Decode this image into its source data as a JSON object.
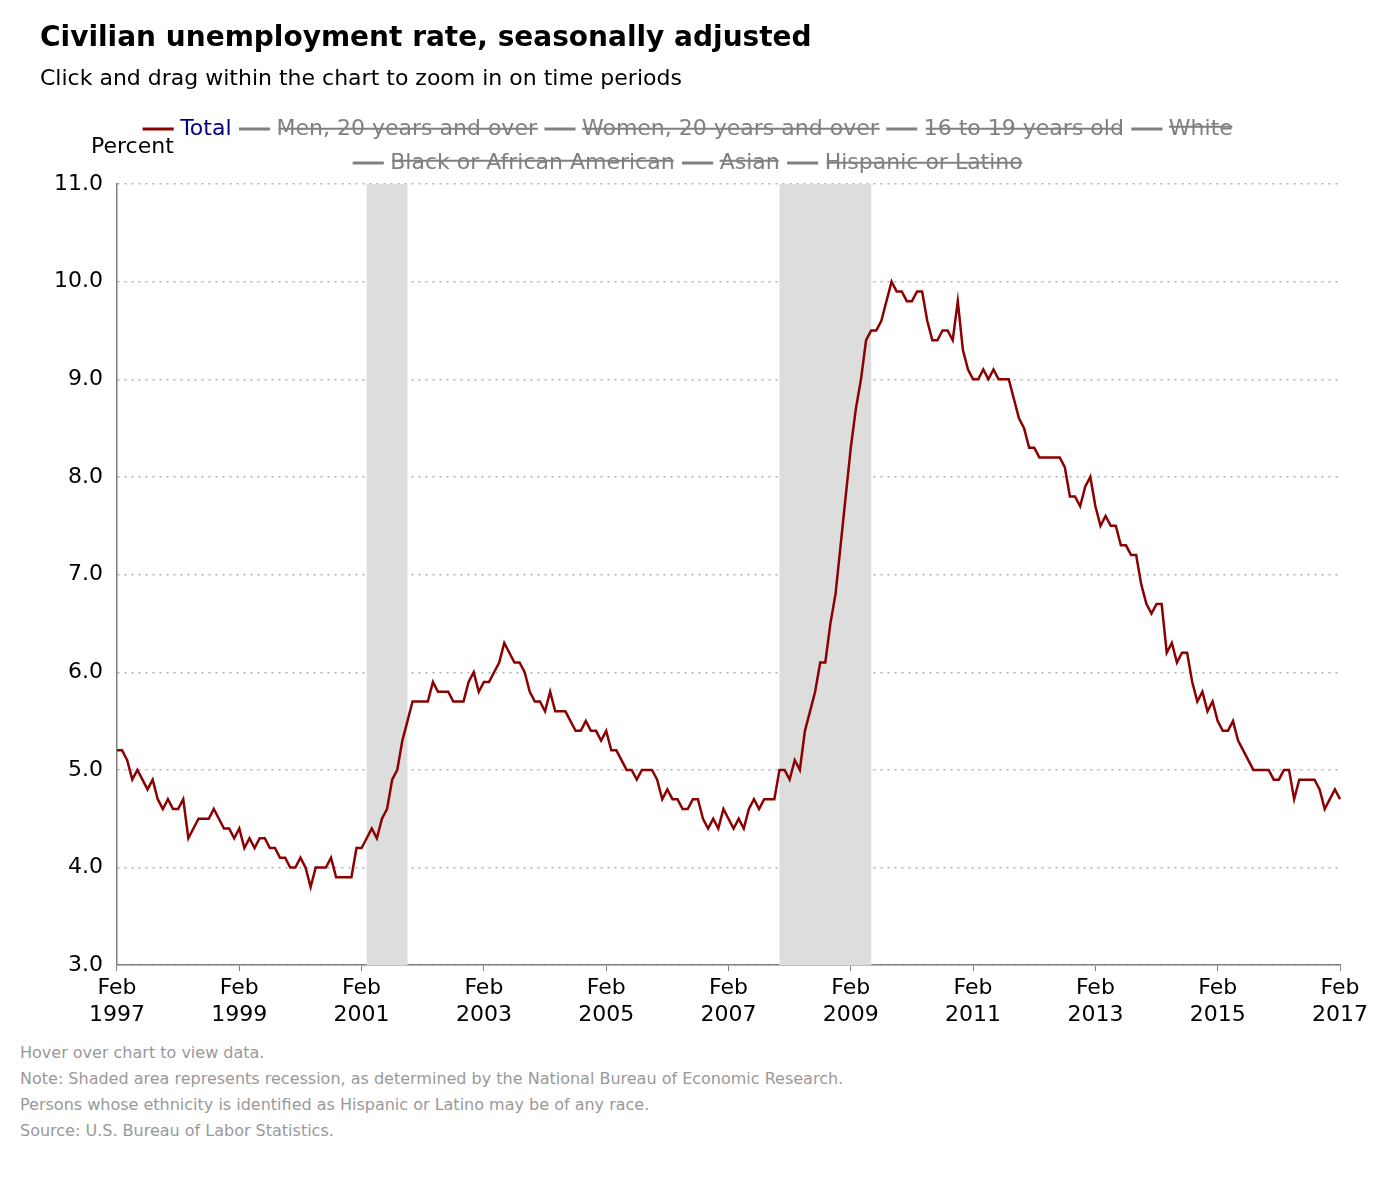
{
  "chart_data": {
    "type": "line",
    "title": "Civilian unemployment rate, seasonally adjusted",
    "subtitle": "Click and drag within the chart to zoom in on time periods",
    "y_label": "Percent",
    "notes": [
      "Hover over chart to view data.",
      "Note: Shaded area represents recession, as determined by the National Bureau of Economic Research.",
      "Persons whose ethnicity is identified as Hispanic or Latino may be of any race.",
      "Source: U.S. Bureau of Labor Statistics."
    ],
    "x": [
      "Feb 1997",
      null,
      null,
      null,
      null,
      null,
      null,
      null,
      null,
      null,
      null,
      null,
      null,
      null,
      null,
      null,
      null,
      null,
      null,
      null,
      null,
      null,
      null,
      null,
      "Feb 1999",
      null,
      null,
      null,
      null,
      null,
      null,
      null,
      null,
      null,
      null,
      null,
      null,
      null,
      null,
      null,
      null,
      null,
      null,
      null,
      null,
      null,
      null,
      null,
      "Feb 2001",
      null,
      null,
      null,
      null,
      null,
      null,
      null,
      null,
      null,
      null,
      null,
      null,
      null,
      null,
      null,
      null,
      null,
      null,
      null,
      null,
      null,
      null,
      null,
      "Feb 2003",
      null,
      null,
      null,
      null,
      null,
      null,
      null,
      null,
      null,
      null,
      null,
      null,
      null,
      null,
      null,
      null,
      null,
      null,
      null,
      null,
      null,
      null,
      null,
      "Feb 2005",
      null,
      null,
      null,
      null,
      null,
      null,
      null,
      null,
      null,
      null,
      null,
      null,
      null,
      null,
      null,
      null,
      null,
      null,
      null,
      null,
      null,
      null,
      null,
      "Feb 2007",
      null,
      null,
      null,
      null,
      null,
      null,
      null,
      null,
      null,
      null,
      null,
      null,
      null,
      null,
      null,
      null,
      null,
      null,
      null,
      null,
      null,
      null,
      null,
      "Feb 2009",
      null,
      null,
      null,
      null,
      null,
      null,
      null,
      null,
      null,
      null,
      null,
      null,
      null,
      null,
      null,
      null,
      null,
      null,
      null,
      null,
      null,
      null,
      null,
      "Feb 2011",
      null,
      null,
      null,
      null,
      null,
      null,
      null,
      null,
      null,
      null,
      null,
      null,
      null,
      null,
      null,
      null,
      null,
      null,
      null,
      null,
      null,
      null,
      null,
      "Feb 2013",
      null,
      null,
      null,
      null,
      null,
      null,
      null,
      null,
      null,
      null,
      null,
      null,
      null,
      null,
      null,
      null,
      null,
      null,
      null,
      null,
      null,
      null,
      null,
      "Feb 2015",
      null,
      null,
      null,
      null,
      null,
      null,
      null,
      null,
      null,
      null,
      null,
      null,
      null,
      null,
      null,
      null,
      null,
      null,
      null,
      null,
      null,
      null,
      null,
      "Feb 2017"
    ],
    "series": [
      {
        "name": "Total",
        "color": "#8b0000",
        "values": [
          5.2,
          5.2,
          5.1,
          4.9,
          5.0,
          4.9,
          4.8,
          4.9,
          4.7,
          4.6,
          4.7,
          4.6,
          4.6,
          4.7,
          4.3,
          4.4,
          4.5,
          4.5,
          4.5,
          4.6,
          4.5,
          4.4,
          4.4,
          4.3,
          4.4,
          4.2,
          4.3,
          4.2,
          4.3,
          4.3,
          4.2,
          4.2,
          4.1,
          4.1,
          4.0,
          4.0,
          4.1,
          4.0,
          3.8,
          4.0,
          4.0,
          4.0,
          4.1,
          3.9,
          3.9,
          3.9,
          3.9,
          4.2,
          4.2,
          4.3,
          4.4,
          4.3,
          4.5,
          4.6,
          4.9,
          5.0,
          5.3,
          5.5,
          5.7,
          5.7,
          5.7,
          5.7,
          5.9,
          5.8,
          5.8,
          5.8,
          5.7,
          5.7,
          5.7,
          5.9,
          6.0,
          5.8,
          5.9,
          5.9,
          6.0,
          6.1,
          6.3,
          6.2,
          6.1,
          6.1,
          6.0,
          5.8,
          5.7,
          5.7,
          5.6,
          5.8,
          5.6,
          5.6,
          5.6,
          5.5,
          5.4,
          5.4,
          5.5,
          5.4,
          5.4,
          5.3,
          5.4,
          5.2,
          5.2,
          5.1,
          5.0,
          5.0,
          4.9,
          5.0,
          5.0,
          5.0,
          4.9,
          4.7,
          4.8,
          4.7,
          4.7,
          4.6,
          4.6,
          4.7,
          4.7,
          4.5,
          4.4,
          4.5,
          4.4,
          4.6,
          4.5,
          4.4,
          4.5,
          4.4,
          4.6,
          4.7,
          4.6,
          4.7,
          4.7,
          4.7,
          5.0,
          5.0,
          4.9,
          5.1,
          5.0,
          5.4,
          5.6,
          5.8,
          6.1,
          6.1,
          6.5,
          6.8,
          7.3,
          7.8,
          8.3,
          8.7,
          9.0,
          9.4,
          9.5,
          9.5,
          9.6,
          9.8,
          10.0,
          9.9,
          9.9,
          9.8,
          9.8,
          9.9,
          9.9,
          9.6,
          9.4,
          9.4,
          9.5,
          9.5,
          9.4,
          9.8,
          9.3,
          9.1,
          9.0,
          9.0,
          9.1,
          9.0,
          9.1,
          9.0,
          9.0,
          9.0,
          8.8,
          8.6,
          8.5,
          8.3,
          8.3,
          8.2,
          8.2,
          8.2,
          8.2,
          8.2,
          8.1,
          7.8,
          7.8,
          7.7,
          7.9,
          8.0,
          7.7,
          7.5,
          7.6,
          7.5,
          7.5,
          7.3,
          7.3,
          7.2,
          7.2,
          6.9,
          6.7,
          6.6,
          6.7,
          6.7,
          6.2,
          6.3,
          6.1,
          6.2,
          6.2,
          5.9,
          5.7,
          5.8,
          5.6,
          5.7,
          5.5,
          5.4,
          5.4,
          5.5,
          5.3,
          5.2,
          5.1,
          5.0,
          5.0,
          5.0,
          5.0,
          4.9,
          4.9,
          5.0,
          5.0,
          4.7,
          4.9,
          4.9,
          4.9,
          4.9,
          4.8,
          4.6,
          4.7,
          4.8,
          4.7
        ]
      }
    ],
    "inactive_series": [
      {
        "name": "Men, 20 years and over",
        "color": "#808080"
      },
      {
        "name": "Women, 20 years and over",
        "color": "#808080"
      },
      {
        "name": "16 to 19 years old",
        "color": "#808080"
      },
      {
        "name": "White",
        "color": "#808080"
      },
      {
        "name": "Black or African American",
        "color": "#808080"
      },
      {
        "name": "Asian",
        "color": "#808080"
      },
      {
        "name": "Hispanic or Latino",
        "color": "#808080"
      }
    ],
    "recessions": [
      {
        "start": 49,
        "end": 57
      },
      {
        "start": 130,
        "end": 148
      }
    ],
    "ylim": [
      3,
      11
    ],
    "yticks": [
      {
        "value": 3,
        "label": "3.0"
      },
      {
        "value": 4,
        "label": "4.0"
      },
      {
        "value": 5,
        "label": "5.0"
      },
      {
        "value": 6,
        "label": "6.0"
      },
      {
        "value": 7,
        "label": "7.0"
      },
      {
        "value": 8,
        "label": "8.0"
      },
      {
        "value": 9,
        "label": "9.0"
      },
      {
        "value": 10,
        "label": "10.0"
      },
      {
        "value": 11,
        "label": "11.0"
      }
    ],
    "grid": true,
    "legend": "top"
  }
}
